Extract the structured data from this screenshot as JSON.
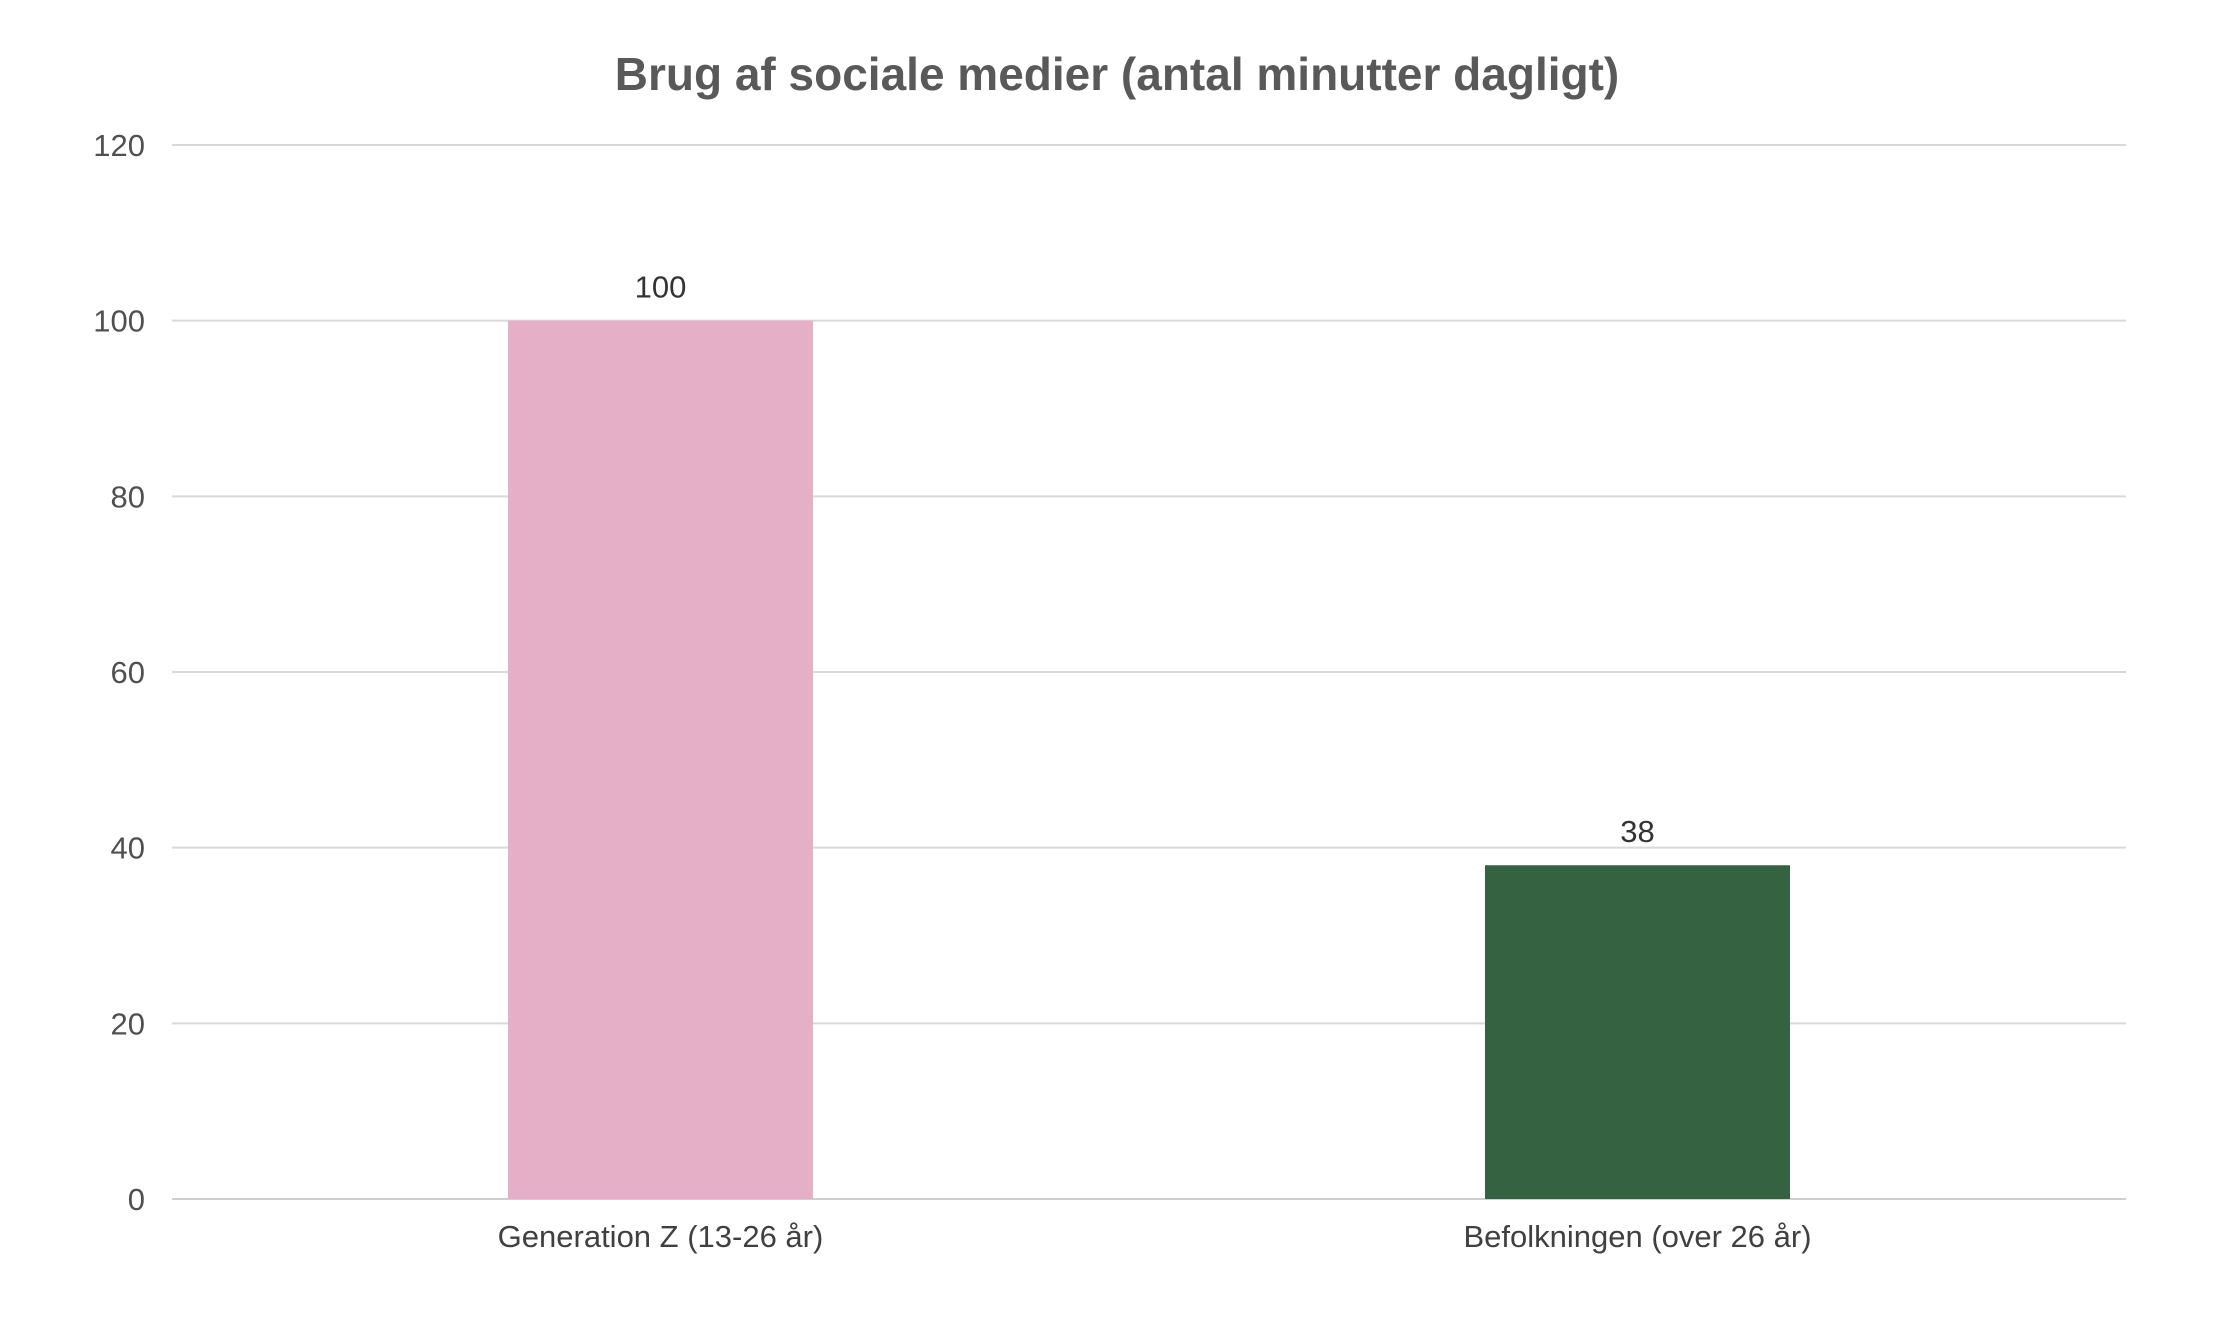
{
  "chart_data": {
    "type": "bar",
    "title": "Brug af sociale medier (antal minutter dagligt)",
    "xlabel": "",
    "ylabel": "",
    "categories": [
      "Generation Z (13-26 år)",
      "Befolkningen (over 26 år)"
    ],
    "values": [
      100,
      38
    ],
    "value_labels": [
      "100",
      "38"
    ],
    "bar_colors": [
      "#e4afc7",
      "#356342"
    ],
    "ylim": [
      0,
      120
    ],
    "yticks": [
      0,
      20,
      40,
      60,
      80,
      100,
      120
    ],
    "grid": true,
    "legend": "none"
  }
}
